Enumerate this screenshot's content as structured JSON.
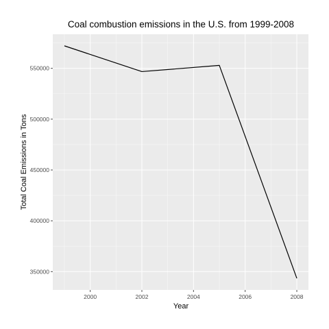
{
  "chart_data": {
    "type": "line",
    "title": "Coal combustion emissions in the U.S. from 1999-2008",
    "xlabel": "Year",
    "ylabel": "Total Coal Emissions in Tons",
    "x": [
      1999,
      2002,
      2005,
      2008
    ],
    "series": [
      {
        "values": [
          572126,
          546789,
          552881,
          343432
        ]
      }
    ],
    "xlim": [
      1998.55,
      2008.45
    ],
    "ylim": [
      332000,
      583500
    ],
    "x_ticks": [
      2000,
      2002,
      2004,
      2006,
      2008
    ],
    "x_tick_labels": [
      "2000",
      "2002",
      "2004",
      "2006",
      "2008"
    ],
    "y_ticks": [
      350000,
      400000,
      450000,
      500000,
      550000
    ],
    "y_tick_labels": [
      "350000",
      "400000",
      "450000",
      "500000",
      "550000"
    ],
    "grid": true,
    "colors": {
      "panel": "#ebebeb",
      "line": "#000000",
      "grid": "#ffffff"
    }
  }
}
